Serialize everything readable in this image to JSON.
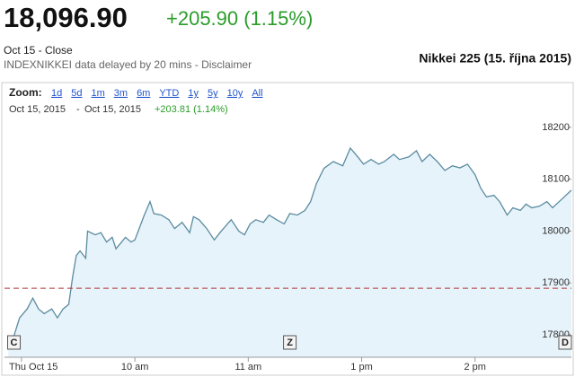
{
  "header": {
    "price": "18,096.90",
    "change": "+205.90 (1.15%)",
    "status": "Oct 15 - Close",
    "source": "INDEXNIKKEI data delayed by 20 mins - Disclaimer",
    "caption": "Nikkei 225 (15. října 2015)"
  },
  "zoom": {
    "label": "Zoom:",
    "options": [
      "1d",
      "5d",
      "1m",
      "3m",
      "6m",
      "YTD",
      "1y",
      "5y",
      "10y",
      "All"
    ]
  },
  "range": {
    "from": "Oct 15, 2015",
    "separator": "-",
    "to": "Oct 15, 2015",
    "change": "+203.81 (1.14%)"
  },
  "chart_data": {
    "type": "line",
    "x": [
      -7,
      -4,
      -1,
      3,
      6,
      9,
      12,
      16,
      19,
      22,
      25,
      27,
      29,
      31,
      34,
      35,
      39,
      42,
      45,
      48,
      50,
      53,
      55,
      58,
      60,
      65,
      68,
      70,
      74,
      78,
      81,
      85,
      89,
      91,
      94,
      98,
      102,
      105,
      109,
      111,
      115,
      118,
      121,
      124,
      128,
      131,
      135,
      139,
      142,
      146,
      150,
      153,
      156,
      160,
      165,
      170,
      174,
      178,
      181,
      185,
      189,
      192,
      197,
      200,
      205,
      209,
      212,
      216,
      220,
      224,
      228,
      232,
      236,
      240,
      243,
      246,
      250,
      253,
      257,
      260,
      264,
      267,
      270,
      274,
      278,
      281,
      286,
      291
    ],
    "values": [
      17781,
      17798,
      17833,
      17850,
      17871,
      17850,
      17841,
      17850,
      17833,
      17850,
      17859,
      17910,
      17953,
      17962,
      17948,
      18000,
      17993,
      17997,
      17979,
      17988,
      17966,
      17979,
      17988,
      17979,
      17983,
      18031,
      18057,
      18034,
      18031,
      18022,
      18005,
      18017,
      17997,
      18028,
      18022,
      18005,
      17983,
      17997,
      18014,
      18022,
      18000,
      17993,
      18014,
      18022,
      18017,
      18031,
      18022,
      18014,
      18034,
      18031,
      18040,
      18057,
      18091,
      18121,
      18134,
      18126,
      18160,
      18143,
      18129,
      18138,
      18129,
      18134,
      18148,
      18138,
      18143,
      18155,
      18134,
      18148,
      18134,
      18117,
      18126,
      18122,
      18129,
      18109,
      18083,
      18066,
      18069,
      18057,
      18031,
      18045,
      18040,
      18052,
      18045,
      18048,
      18057,
      18045,
      18062,
      18079
    ],
    "color": "#5b8ba0",
    "fill": "#e6f3fa",
    "xlim": [
      -9,
      291
    ],
    "ylim": [
      17757,
      18224
    ],
    "xticks": [
      {
        "value": 0,
        "label": "Thu Oct 15"
      },
      {
        "value": 60,
        "label": "10 am"
      },
      {
        "value": 120,
        "label": "11 am"
      },
      {
        "value": 180,
        "label": "1 pm"
      },
      {
        "value": 240,
        "label": "2 pm"
      }
    ],
    "yticks": [
      17800,
      17900,
      18000,
      18100,
      18200
    ],
    "reference": {
      "value": 17890,
      "color": "#b03030"
    },
    "flags": [
      {
        "label": "C",
        "x": -4
      },
      {
        "label": "Z",
        "x": 142
      },
      {
        "label": "D",
        "x": 290
      }
    ]
  }
}
